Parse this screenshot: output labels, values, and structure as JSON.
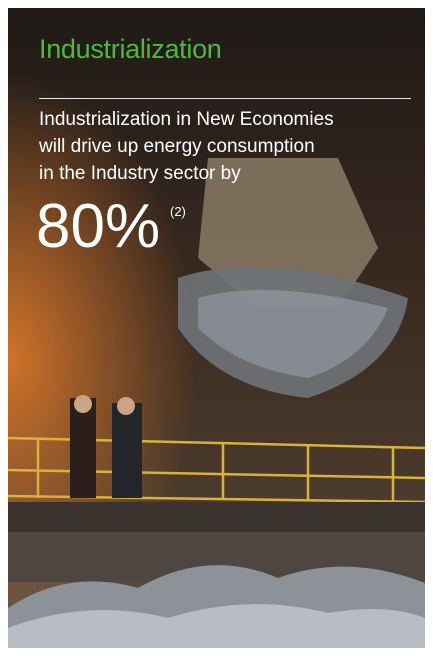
{
  "header": {
    "title": "Industrialization"
  },
  "body": {
    "lines": [
      "Industrialization in New Economies",
      "will drive up energy consumption",
      "in the Industry sector by"
    ]
  },
  "stat": {
    "value": "80%",
    "footnote": "(2)"
  }
}
